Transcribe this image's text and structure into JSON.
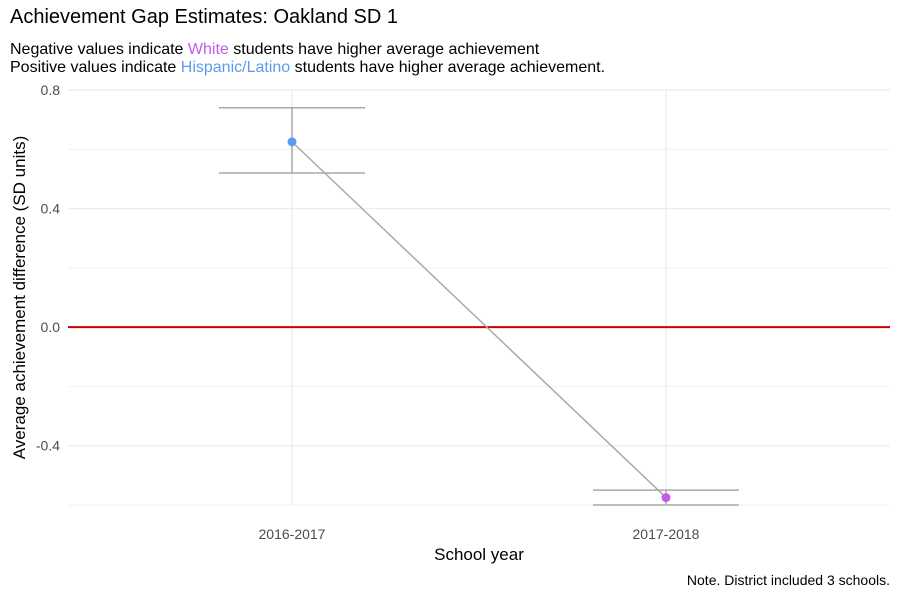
{
  "title": "Achievement Gap Estimates: Oakland SD 1",
  "subtitle": {
    "line1_prefix": "Negative values indicate ",
    "line1_group": "White",
    "line1_suffix": " students have higher average achievement",
    "line2_prefix": "Positive values indicate ",
    "line2_group": "Hispanic/Latino",
    "line2_suffix": " students have higher average achievement."
  },
  "note": "Note. District included 3 schools.",
  "colors": {
    "white_group": "#c35ce8",
    "hispanic_group": "#5b9cf0",
    "reference_line": "#cc0000",
    "series_line": "#a9a9a9",
    "grid": "#ebebeb"
  },
  "chart_data": {
    "type": "line",
    "title": "Achievement Gap Estimates: Oakland SD 1",
    "xlabel": "School year",
    "ylabel": "Average achievement difference (SD units)",
    "categories": [
      "2016-2017",
      "2017-2018"
    ],
    "ylim": [
      -0.6,
      0.8
    ],
    "yticks": [
      -0.4,
      0.0,
      0.4,
      0.8
    ],
    "ytick_labels": [
      "-0.4",
      "0.0",
      "0.4",
      "0.8"
    ],
    "reference_y": 0,
    "grid": true,
    "series": [
      {
        "values": [
          0.625,
          -0.575
        ],
        "lower": [
          0.52,
          -0.6
        ],
        "upper": [
          0.74,
          -0.55
        ],
        "point_colors": [
          "#5b9cf0",
          "#c35ce8"
        ]
      }
    ]
  }
}
